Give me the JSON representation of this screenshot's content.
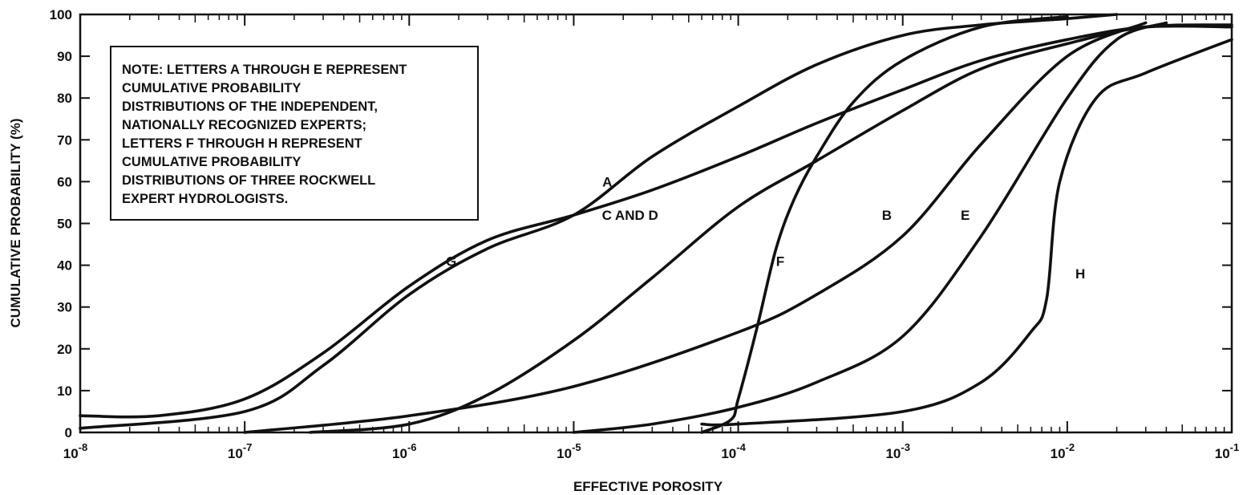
{
  "chart_data": {
    "type": "line",
    "xlabel": "EFFECTIVE POROSITY",
    "ylabel": "CUMULATIVE PROBABILITY (%)",
    "x_scale": "log",
    "xlim": [
      1e-08,
      0.1
    ],
    "ylim": [
      0,
      100
    ],
    "x_tick_values": [
      1e-08,
      1e-07,
      1e-06,
      1e-05,
      0.0001,
      0.001,
      0.01,
      0.1
    ],
    "x_tick_exponents": [
      "-8",
      "-7",
      "-6",
      "-5",
      "-4",
      "-3",
      "-2",
      "-1"
    ],
    "x_tick_base": "10",
    "y_ticks": [
      "0",
      "10",
      "20",
      "30",
      "40",
      "50",
      "60",
      "70",
      "80",
      "90",
      "100"
    ],
    "grid": false,
    "note": [
      "NOTE: LETTERS A THROUGH E REPRESENT",
      "CUMULATIVE PROBABILITY",
      "DISTRIBUTIONS OF THE INDEPENDENT,",
      "NATIONALLY RECOGNIZED EXPERTS;",
      "LETTERS F THROUGH H REPRESENT",
      "CUMULATIVE PROBABILITY",
      "DISTRIBUTIONS OF THREE ROCKWELL",
      "EXPERT HYDROLOGISTS."
    ],
    "series": [
      {
        "name": "A",
        "label_at": [
          1.6e-05,
          60
        ],
        "x": [
          1e-08,
          1e-07,
          3e-07,
          1e-06,
          3e-06,
          1e-05,
          3e-05,
          0.0001,
          0.0003,
          0.001,
          0.003,
          0.01,
          0.02
        ],
        "y": [
          1,
          5,
          16,
          33,
          44,
          52,
          66,
          78,
          88,
          95,
          97.5,
          99,
          100
        ]
      },
      {
        "name": "B",
        "label_at": [
          0.0008,
          52
        ],
        "x": [
          1e-07,
          1e-06,
          1e-05,
          0.0001,
          0.0003,
          0.001,
          0.003,
          0.01,
          0.03
        ],
        "y": [
          0,
          4,
          11,
          24,
          33,
          47,
          69,
          90,
          98
        ]
      },
      {
        "name": "C AND D",
        "label_at": [
          2.2e-05,
          52
        ],
        "x": [
          2.5e-07,
          1e-06,
          3e-06,
          1e-05,
          3e-05,
          0.0001,
          0.0003,
          0.001,
          0.003,
          0.01,
          0.03,
          0.1
        ],
        "y": [
          0,
          2,
          9,
          22,
          37,
          54,
          65,
          77,
          87,
          93,
          97,
          97.5
        ]
      },
      {
        "name": "E",
        "label_at": [
          0.0024,
          52
        ],
        "x": [
          1e-05,
          3e-05,
          0.0001,
          0.0003,
          0.001,
          0.003,
          0.01,
          0.02,
          0.04
        ],
        "y": [
          0,
          2,
          6,
          12,
          23,
          47,
          80,
          94,
          98
        ]
      },
      {
        "name": "F",
        "label_at": [
          0.00018,
          41
        ],
        "x": [
          6e-05,
          9e-05,
          0.0001,
          0.00013,
          0.00017,
          0.00022,
          0.0003,
          0.0005,
          0.001,
          0.003,
          0.01
        ],
        "y": [
          0,
          3,
          8,
          25,
          44,
          56,
          66,
          79,
          89,
          97,
          99.5
        ]
      },
      {
        "name": "G",
        "label_at": [
          1.8e-06,
          41
        ],
        "x": [
          1e-08,
          3e-08,
          1e-07,
          3e-07,
          1e-06,
          3e-06,
          1e-05,
          3e-05,
          0.0001,
          0.0003,
          0.001,
          0.003,
          0.01,
          0.03,
          0.1
        ],
        "y": [
          4,
          4,
          8,
          19,
          35,
          46,
          52,
          58,
          66,
          74,
          82,
          89,
          94,
          97,
          97
        ]
      },
      {
        "name": "H",
        "label_at": [
          0.012,
          38
        ],
        "x": [
          6e-05,
          0.0001,
          0.001,
          0.003,
          0.006,
          0.0075,
          0.009,
          0.015,
          0.03,
          0.1
        ],
        "y": [
          2,
          2,
          5,
          12,
          24,
          32,
          60,
          80,
          86,
          94
        ]
      }
    ]
  }
}
